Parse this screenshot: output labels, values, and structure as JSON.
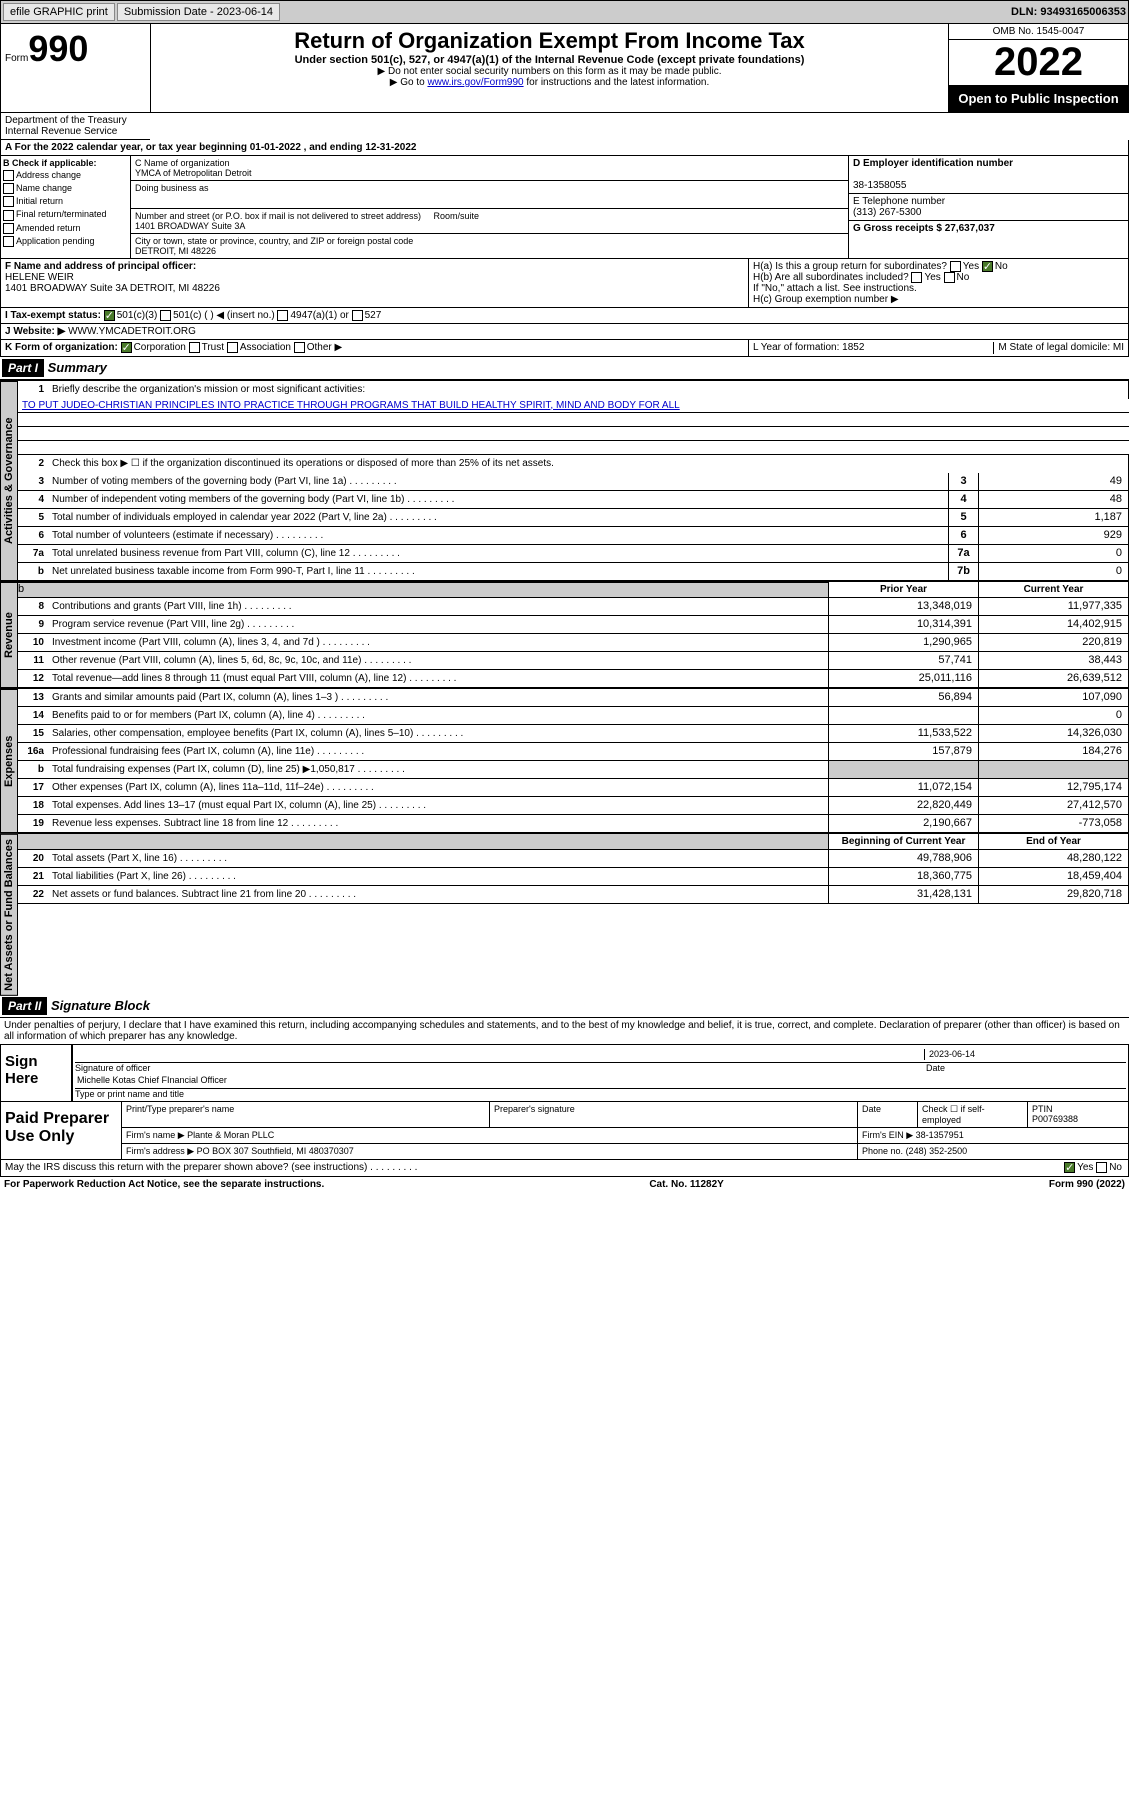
{
  "topbar": {
    "efile": "efile GRAPHIC print",
    "sub_label": "Submission Date - 2023-06-14",
    "dln": "DLN: 93493165006353"
  },
  "header": {
    "form_label": "Form",
    "form_num": "990",
    "title": "Return of Organization Exempt From Income Tax",
    "subtitle": "Under section 501(c), 527, or 4947(a)(1) of the Internal Revenue Code (except private foundations)",
    "note1": "▶ Do not enter social security numbers on this form as it may be made public.",
    "note2": "▶ Go to www.irs.gov/Form990 for instructions and the latest information.",
    "omb": "OMB No. 1545-0047",
    "year": "2022",
    "open_pub": "Open to Public Inspection",
    "dept": "Department of the Treasury Internal Revenue Service"
  },
  "row_a": "A For the 2022 calendar year, or tax year beginning 01-01-2022  , and ending 12-31-2022",
  "col_b": {
    "hdr": "B Check if applicable:",
    "items": [
      "Address change",
      "Name change",
      "Initial return",
      "Final return/terminated",
      "Amended return",
      "Application pending"
    ]
  },
  "col_c": {
    "name_lbl": "C Name of organization",
    "name": "YMCA of Metropolitan Detroit",
    "dba_lbl": "Doing business as",
    "addr_lbl": "Number and street (or P.O. box if mail is not delivered to street address)",
    "room_lbl": "Room/suite",
    "addr": "1401 BROADWAY Suite 3A",
    "city_lbl": "City or town, state or province, country, and ZIP or foreign postal code",
    "city": "DETROIT, MI  48226"
  },
  "col_de": {
    "d_lbl": "D Employer identification number",
    "ein": "38-1358055",
    "e_lbl": "E Telephone number",
    "phone": "(313) 267-5300",
    "g_lbl": "G Gross receipts $ 27,637,037"
  },
  "officer": {
    "f_lbl": "F Name and address of principal officer:",
    "name": "HELENE WEIR",
    "addr": "1401 BROADWAY Suite 3A DETROIT, MI  48226"
  },
  "h_section": {
    "ha": "H(a)  Is this a group return for subordinates?",
    "hb": "H(b)  Are all subordinates included?",
    "hb_note": "If \"No,\" attach a list. See instructions.",
    "hc": "H(c)  Group exemption number ▶"
  },
  "tax_status": {
    "i_lbl": "I  Tax-exempt status:",
    "opts": [
      "501(c)(3)",
      "501(c) (  ) ◀ (insert no.)",
      "4947(a)(1) or",
      "527"
    ]
  },
  "website": {
    "j_lbl": "J  Website: ▶",
    "val": " WWW.YMCADETROIT.ORG"
  },
  "form_org": {
    "k_lbl": "K Form of organization:",
    "opts": [
      "Corporation",
      "Trust",
      "Association",
      "Other ▶"
    ],
    "l_lbl": "L Year of formation: 1852",
    "m_lbl": "M State of legal domicile: MI"
  },
  "part1": {
    "hdr": "Part I",
    "title": "Summary",
    "q1": "Briefly describe the organization's mission or most significant activities:",
    "mission": "TO PUT JUDEO-CHRISTIAN PRINCIPLES INTO PRACTICE THROUGH PROGRAMS THAT BUILD HEALTHY SPIRIT, MIND AND BODY FOR ALL",
    "q2": "Check this box ▶ ☐  if the organization discontinued its operations or disposed of more than 25% of its net assets.",
    "sections": {
      "gov": "Activities & Governance",
      "rev": "Revenue",
      "exp": "Expenses",
      "net": "Net Assets or Fund Balances"
    },
    "lines_single": [
      {
        "n": "3",
        "t": "Number of voting members of the governing body (Part VI, line 1a)",
        "b": "3",
        "v": "49"
      },
      {
        "n": "4",
        "t": "Number of independent voting members of the governing body (Part VI, line 1b)",
        "b": "4",
        "v": "48"
      },
      {
        "n": "5",
        "t": "Total number of individuals employed in calendar year 2022 (Part V, line 2a)",
        "b": "5",
        "v": "1,187"
      },
      {
        "n": "6",
        "t": "Total number of volunteers (estimate if necessary)",
        "b": "6",
        "v": "929"
      },
      {
        "n": "7a",
        "t": "Total unrelated business revenue from Part VIII, column (C), line 12",
        "b": "7a",
        "v": "0"
      },
      {
        "n": "b",
        "t": "Net unrelated business taxable income from Form 990-T, Part I, line 11",
        "b": "7b",
        "v": "0"
      }
    ],
    "col_hdrs": {
      "prior": "Prior Year",
      "current": "Current Year",
      "boy": "Beginning of Current Year",
      "eoy": "End of Year"
    },
    "lines_rev": [
      {
        "n": "8",
        "t": "Contributions and grants (Part VIII, line 1h)",
        "p": "13,348,019",
        "c": "11,977,335"
      },
      {
        "n": "9",
        "t": "Program service revenue (Part VIII, line 2g)",
        "p": "10,314,391",
        "c": "14,402,915"
      },
      {
        "n": "10",
        "t": "Investment income (Part VIII, column (A), lines 3, 4, and 7d )",
        "p": "1,290,965",
        "c": "220,819"
      },
      {
        "n": "11",
        "t": "Other revenue (Part VIII, column (A), lines 5, 6d, 8c, 9c, 10c, and 11e)",
        "p": "57,741",
        "c": "38,443"
      },
      {
        "n": "12",
        "t": "Total revenue—add lines 8 through 11 (must equal Part VIII, column (A), line 12)",
        "p": "25,011,116",
        "c": "26,639,512"
      }
    ],
    "lines_exp": [
      {
        "n": "13",
        "t": "Grants and similar amounts paid (Part IX, column (A), lines 1–3 )",
        "p": "56,894",
        "c": "107,090"
      },
      {
        "n": "14",
        "t": "Benefits paid to or for members (Part IX, column (A), line 4)",
        "p": "",
        "c": "0"
      },
      {
        "n": "15",
        "t": "Salaries, other compensation, employee benefits (Part IX, column (A), lines 5–10)",
        "p": "11,533,522",
        "c": "14,326,030"
      },
      {
        "n": "16a",
        "t": "Professional fundraising fees (Part IX, column (A), line 11e)",
        "p": "157,879",
        "c": "184,276"
      },
      {
        "n": "b",
        "t": "Total fundraising expenses (Part IX, column (D), line 25) ▶1,050,817",
        "p": "grey",
        "c": "grey"
      },
      {
        "n": "17",
        "t": "Other expenses (Part IX, column (A), lines 11a–11d, 11f–24e)",
        "p": "11,072,154",
        "c": "12,795,174"
      },
      {
        "n": "18",
        "t": "Total expenses. Add lines 13–17 (must equal Part IX, column (A), line 25)",
        "p": "22,820,449",
        "c": "27,412,570"
      },
      {
        "n": "19",
        "t": "Revenue less expenses. Subtract line 18 from line 12",
        "p": "2,190,667",
        "c": "-773,058"
      }
    ],
    "lines_net": [
      {
        "n": "20",
        "t": "Total assets (Part X, line 16)",
        "p": "49,788,906",
        "c": "48,280,122"
      },
      {
        "n": "21",
        "t": "Total liabilities (Part X, line 26)",
        "p": "18,360,775",
        "c": "18,459,404"
      },
      {
        "n": "22",
        "t": "Net assets or fund balances. Subtract line 21 from line 20",
        "p": "31,428,131",
        "c": "29,820,718"
      }
    ]
  },
  "part2": {
    "hdr": "Part II",
    "title": "Signature Block",
    "decl": "Under penalties of perjury, I declare that I have examined this return, including accompanying schedules and statements, and to the best of my knowledge and belief, it is true, correct, and complete. Declaration of preparer (other than officer) is based on all information of which preparer has any knowledge.",
    "sign_here": "Sign Here",
    "sig_officer": "Signature of officer",
    "sig_date": "2023-06-14",
    "date_lbl": "Date",
    "officer_name": "Michelle Kotas  Chief FInancial Officer",
    "type_lbl": "Type or print name and title"
  },
  "prep": {
    "label": "Paid Preparer Use Only",
    "hdrs": [
      "Print/Type preparer's name",
      "Preparer's signature",
      "Date"
    ],
    "check_lbl": "Check ☐ if self-employed",
    "ptin_lbl": "PTIN",
    "ptin": "P00769388",
    "firm_name_lbl": "Firm's name    ▶",
    "firm_name": "Plante & Moran PLLC",
    "firm_ein_lbl": "Firm's EIN ▶",
    "firm_ein": "38-1357951",
    "firm_addr_lbl": "Firm's address ▶",
    "firm_addr": "PO BOX 307 Southfield, MI  480370307",
    "phone_lbl": "Phone no.",
    "phone": "(248) 352-2500"
  },
  "discuss": {
    "q": "May the IRS discuss this return with the preparer shown above? (see instructions)",
    "yes": "Yes",
    "no": "No"
  },
  "footer": {
    "pra": "For Paperwork Reduction Act Notice, see the separate instructions.",
    "cat": "Cat. No. 11282Y",
    "form": "Form 990 (2022)"
  }
}
